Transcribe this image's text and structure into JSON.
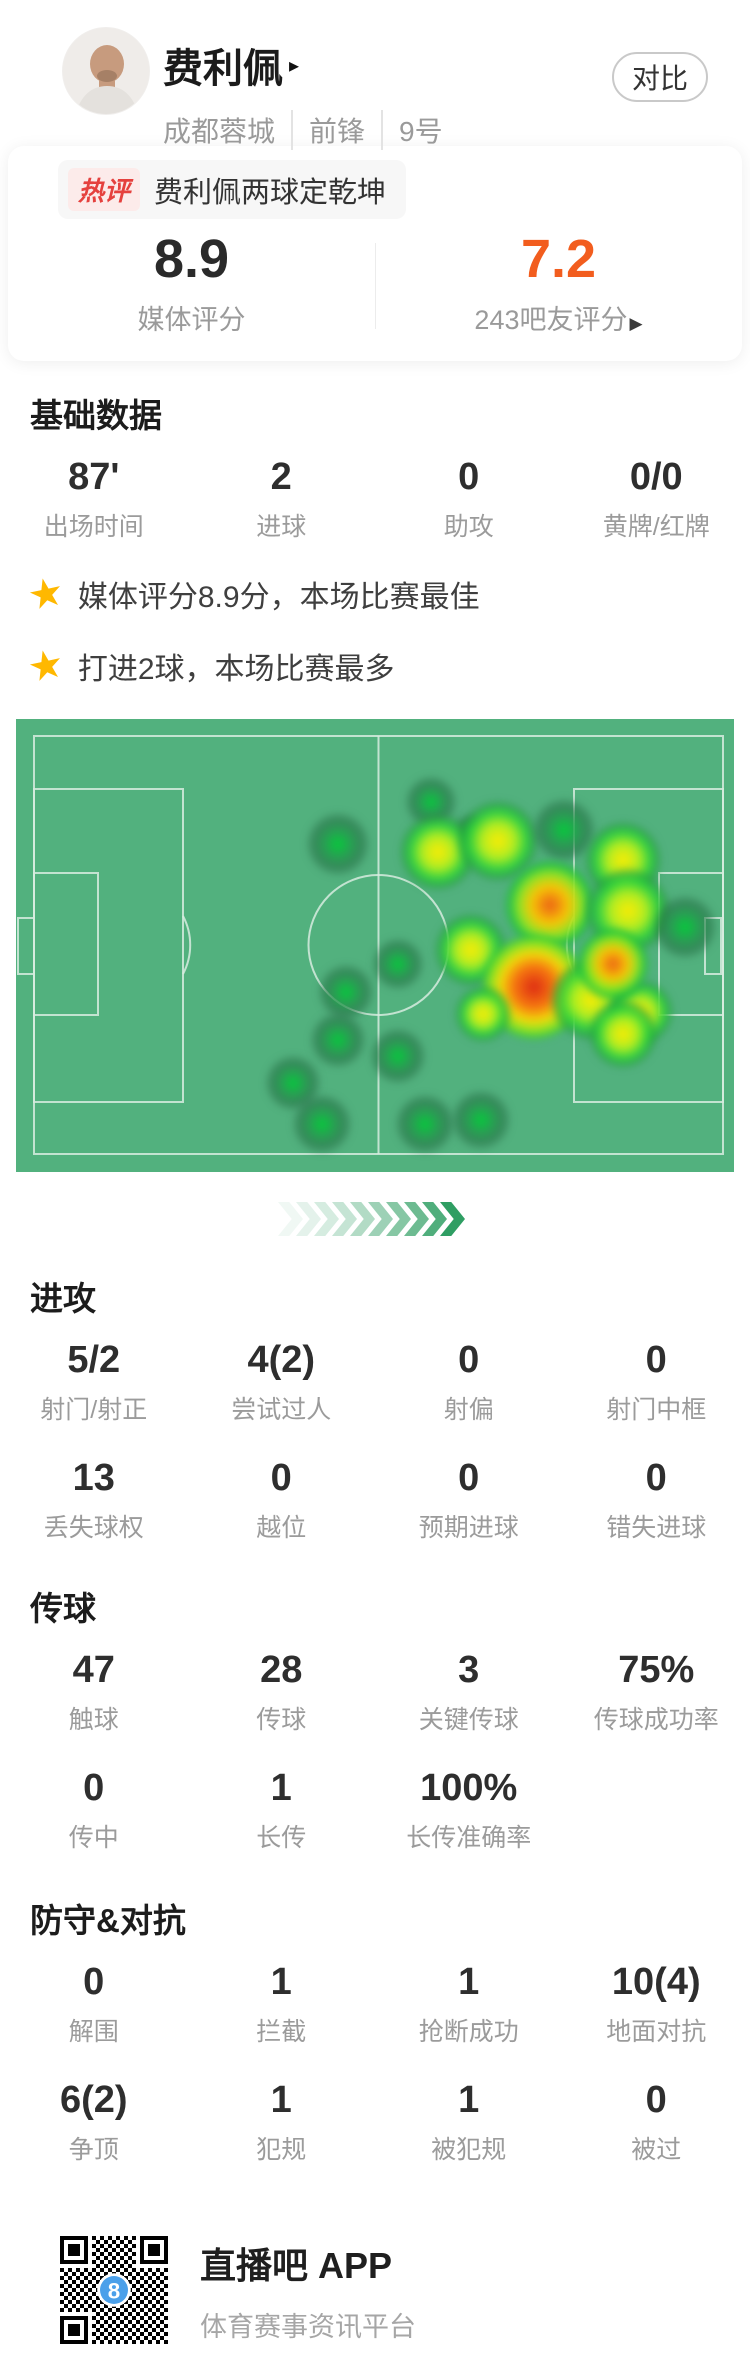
{
  "header": {
    "player_name": "费利佩",
    "name_arrow": "▸",
    "team": "成都蓉城",
    "position": "前锋",
    "shirt_number": "9号",
    "compare_label": "对比"
  },
  "hot_comment": {
    "badge": "热评",
    "text": "费利佩两球定乾坤"
  },
  "ratings": {
    "media": {
      "value": "8.9",
      "label": "媒体评分"
    },
    "fans": {
      "value": "7.2",
      "label": "243吧友评分",
      "arrow": "▶",
      "color": "#f25d1e"
    }
  },
  "highlights": [
    {
      "icon": "star",
      "text": "媒体评分8.9分，本场比赛最佳"
    },
    {
      "icon": "star",
      "text": "打进2球，本场比赛最多"
    }
  ],
  "stats": {
    "basic": {
      "title": "基础数据",
      "items": [
        {
          "v": "87'",
          "l": "出场时间"
        },
        {
          "v": "2",
          "l": "进球"
        },
        {
          "v": "0",
          "l": "助攻"
        },
        {
          "v": "0/0",
          "l": "黄牌/红牌"
        }
      ]
    },
    "attack": {
      "title": "进攻",
      "items": [
        {
          "v": "5/2",
          "l": "射门/射正"
        },
        {
          "v": "4(2)",
          "l": "尝试过人"
        },
        {
          "v": "0",
          "l": "射偏"
        },
        {
          "v": "0",
          "l": "射门中框"
        },
        {
          "v": "13",
          "l": "丢失球权"
        },
        {
          "v": "0",
          "l": "越位"
        },
        {
          "v": "0",
          "l": "预期进球"
        },
        {
          "v": "0",
          "l": "错失进球"
        }
      ]
    },
    "passing": {
      "title": "传球",
      "items": [
        {
          "v": "47",
          "l": "触球"
        },
        {
          "v": "28",
          "l": "传球"
        },
        {
          "v": "3",
          "l": "关键传球"
        },
        {
          "v": "75%",
          "l": "传球成功率"
        },
        {
          "v": "0",
          "l": "传中"
        },
        {
          "v": "1",
          "l": "长传"
        },
        {
          "v": "100%",
          "l": "长传准确率"
        }
      ]
    },
    "defense": {
      "title": "防守&对抗",
      "items": [
        {
          "v": "0",
          "l": "解围"
        },
        {
          "v": "1",
          "l": "拦截"
        },
        {
          "v": "1",
          "l": "抢断成功"
        },
        {
          "v": "10(4)",
          "l": "地面对抗"
        },
        {
          "v": "6(2)",
          "l": "争顶"
        },
        {
          "v": "1",
          "l": "犯规"
        },
        {
          "v": "1",
          "l": "被犯规"
        },
        {
          "v": "0",
          "l": "被过"
        }
      ]
    }
  },
  "heatmap": {
    "pitch_color": "#52b17e",
    "line_color": "#d7ecdf",
    "points": [
      {
        "x": 44.8,
        "y": 27.6,
        "s": 62,
        "level": "g"
      },
      {
        "x": 57.8,
        "y": 18.3,
        "s": 50,
        "level": "g"
      },
      {
        "x": 63.4,
        "y": 24.7,
        "s": 32,
        "level": "g"
      },
      {
        "x": 58.8,
        "y": 29.4,
        "s": 74,
        "level": "y"
      },
      {
        "x": 67.1,
        "y": 27.0,
        "s": 78,
        "level": "y"
      },
      {
        "x": 76.3,
        "y": 24.5,
        "s": 62,
        "level": "g"
      },
      {
        "x": 84.5,
        "y": 31.1,
        "s": 74,
        "level": "y"
      },
      {
        "x": 74.4,
        "y": 41.1,
        "s": 88,
        "level": "o"
      },
      {
        "x": 85.2,
        "y": 42.4,
        "s": 82,
        "level": "y"
      },
      {
        "x": 93.2,
        "y": 45.9,
        "s": 62,
        "level": "g"
      },
      {
        "x": 63.4,
        "y": 51.0,
        "s": 70,
        "level": "y"
      },
      {
        "x": 53.2,
        "y": 54.1,
        "s": 50,
        "level": "g"
      },
      {
        "x": 46.0,
        "y": 60.3,
        "s": 54,
        "level": "g"
      },
      {
        "x": 72.1,
        "y": 59.2,
        "s": 104,
        "level": "r"
      },
      {
        "x": 80.1,
        "y": 62.0,
        "s": 78,
        "level": "y"
      },
      {
        "x": 87.0,
        "y": 64.7,
        "s": 62,
        "level": "y"
      },
      {
        "x": 83.1,
        "y": 54.1,
        "s": 70,
        "level": "o"
      },
      {
        "x": 65.0,
        "y": 65.1,
        "s": 54,
        "level": "y"
      },
      {
        "x": 84.5,
        "y": 69.5,
        "s": 66,
        "level": "y"
      },
      {
        "x": 44.8,
        "y": 70.9,
        "s": 54,
        "level": "g"
      },
      {
        "x": 53.2,
        "y": 74.4,
        "s": 54,
        "level": "g"
      },
      {
        "x": 38.6,
        "y": 80.4,
        "s": 54,
        "level": "g"
      },
      {
        "x": 42.6,
        "y": 89.4,
        "s": 58,
        "level": "g"
      },
      {
        "x": 57.0,
        "y": 89.4,
        "s": 58,
        "level": "g"
      },
      {
        "x": 64.8,
        "y": 88.5,
        "s": 58,
        "level": "g"
      }
    ]
  },
  "footer": {
    "app_name": "直播吧 APP",
    "tagline": "体育赛事资讯平台",
    "qr_logo": "8"
  }
}
